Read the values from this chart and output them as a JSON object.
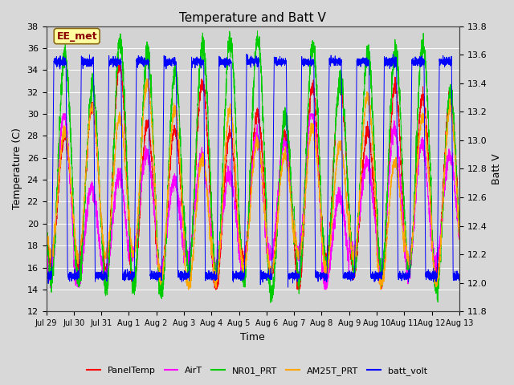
{
  "title": "Temperature and Batt V",
  "xlabel": "Time",
  "ylabel_left": "Temperature (C)",
  "ylabel_right": "Batt V",
  "ylim_left": [
    12,
    38
  ],
  "ylim_right": [
    11.8,
    13.8
  ],
  "yticks_left": [
    12,
    14,
    16,
    18,
    20,
    22,
    24,
    26,
    28,
    30,
    32,
    34,
    36,
    38
  ],
  "yticks_right": [
    11.8,
    12.0,
    12.2,
    12.4,
    12.6,
    12.8,
    13.0,
    13.2,
    13.4,
    13.6,
    13.8
  ],
  "fig_bg_color": "#d8d8d8",
  "plot_bg_color": "#d3d3d3",
  "annotation_text": "EE_met",
  "annotation_color": "#8b0000",
  "annotation_bg": "#ffffa0",
  "annotation_border": "#8b6914",
  "series_colors": {
    "PanelTemp": "#ff0000",
    "AirT": "#ff00ff",
    "NR01_PRT": "#00cc00",
    "AM25T_PRT": "#ffa500",
    "batt_volt": "#0000ff"
  },
  "tick_labels": [
    "Jul 29",
    "Jul 30",
    "Jul 31",
    "Aug 1",
    "Aug 2",
    "Aug 3",
    "Aug 4",
    "Aug 5",
    "Aug 6",
    "Aug 7",
    "Aug 8",
    "Aug 9",
    "Aug 10",
    "Aug 11",
    "Aug 12",
    "Aug 13"
  ],
  "n_days": 15,
  "points_per_day": 288
}
